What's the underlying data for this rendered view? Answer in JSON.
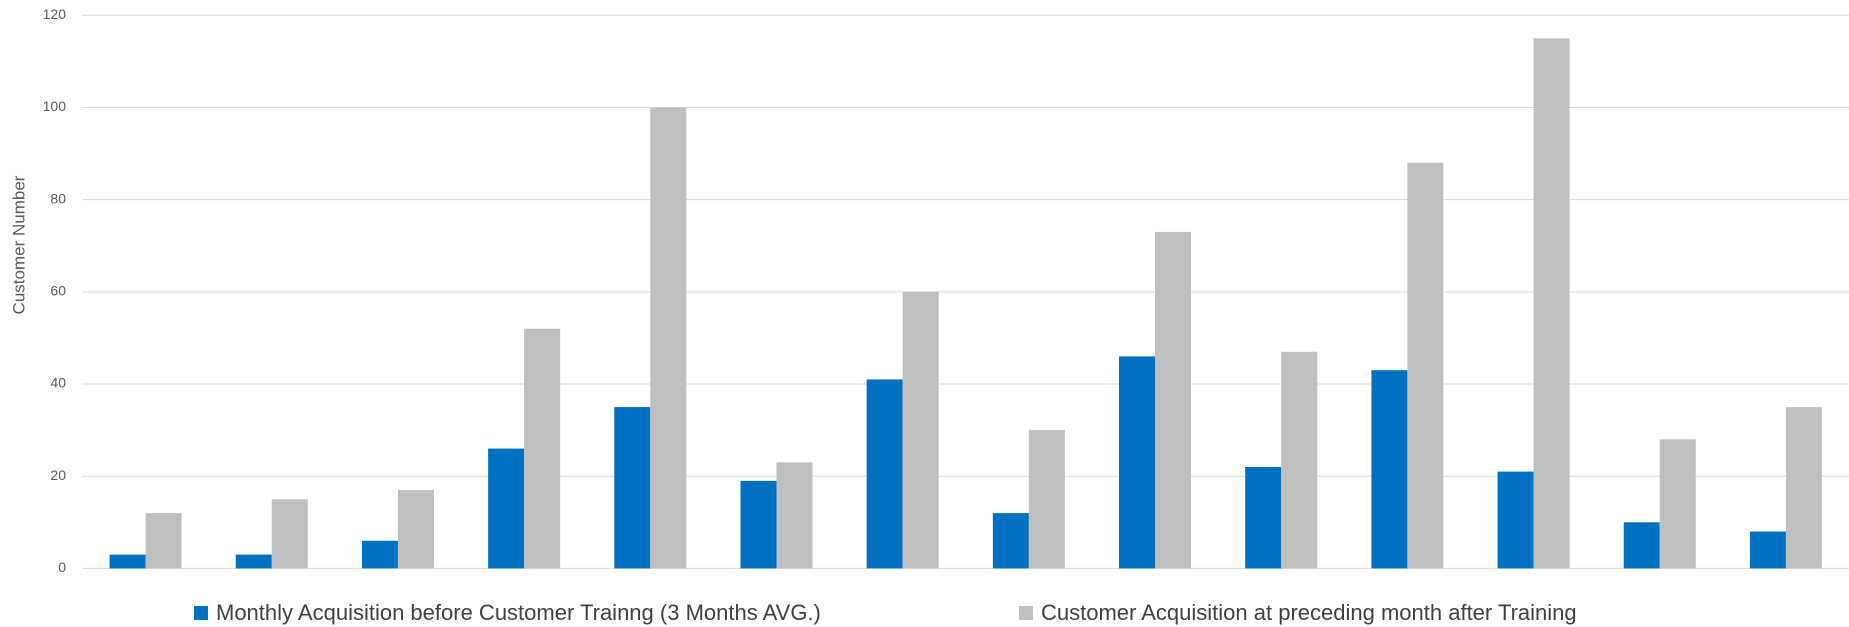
{
  "chart_data": {
    "type": "bar",
    "y_label": "Customer Number",
    "categories": [
      null,
      null,
      null,
      null,
      null,
      null,
      null,
      null,
      null,
      null,
      null,
      null,
      null,
      null
    ],
    "series": [
      {
        "name": "Monthly Acquisition before Customer Trainng (3 Months AVG.)",
        "color": "#0070c0",
        "values": [
          3,
          3,
          6,
          26,
          35,
          19,
          41,
          12,
          46,
          22,
          43,
          21,
          10,
          8
        ]
      },
      {
        "name": "Customer Acquisition at preceding month after Training",
        "color": "#bfbfbf",
        "values": [
          12,
          15,
          17,
          52,
          100,
          23,
          60,
          30,
          73,
          47,
          88,
          115,
          28,
          35
        ]
      }
    ],
    "ylim": [
      0,
      120
    ],
    "yticks": [
      0,
      20,
      40,
      60,
      80,
      100,
      120
    ],
    "grid": true,
    "legend": "bottom"
  }
}
